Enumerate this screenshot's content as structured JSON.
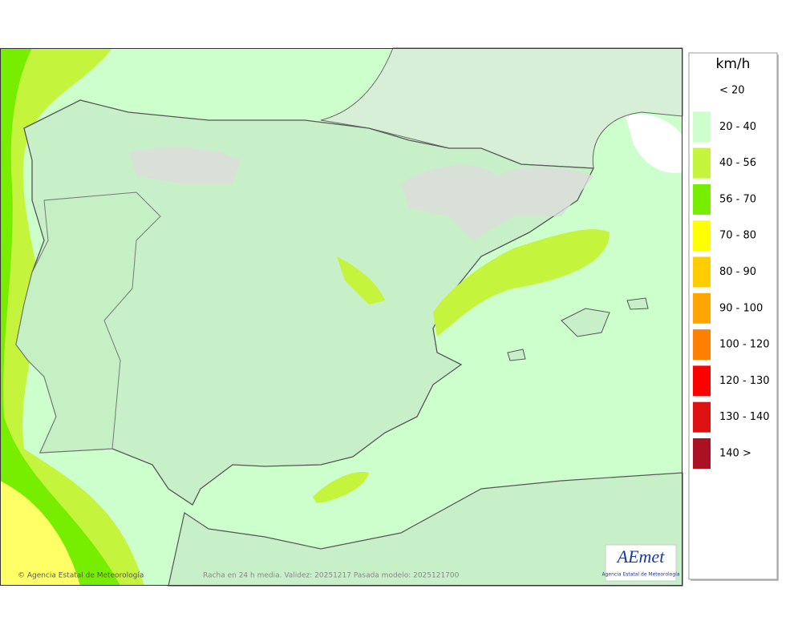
{
  "legend": {
    "title": "km/h",
    "items": [
      {
        "label": "< 20",
        "color": "#ffffff"
      },
      {
        "label": "20 - 40",
        "color": "#ccffcc"
      },
      {
        "label": "40 - 56",
        "color": "#c4f43c"
      },
      {
        "label": "56 - 70",
        "color": "#77ee00"
      },
      {
        "label": "70 - 80",
        "color": "#ffff00"
      },
      {
        "label": "80 - 90",
        "color": "#ffcc00"
      },
      {
        "label": "90 - 100",
        "color": "#ffa500"
      },
      {
        "label": "100 - 120",
        "color": "#ff8000"
      },
      {
        "label": "120 - 130",
        "color": "#ff0000"
      },
      {
        "label": "130 - 140",
        "color": "#dd1111"
      },
      {
        "label": "140 >",
        "color": "#aa1122"
      }
    ]
  },
  "footer": {
    "copyright": "© Agencia Estatal de Meteorología",
    "caption": "Racha en 24 h media. Validez: 20251217 Pasada modelo: 2025121700"
  },
  "logo": {
    "name": "AEmet",
    "subtitle": "Agencia Estatal de Meteorología"
  }
}
